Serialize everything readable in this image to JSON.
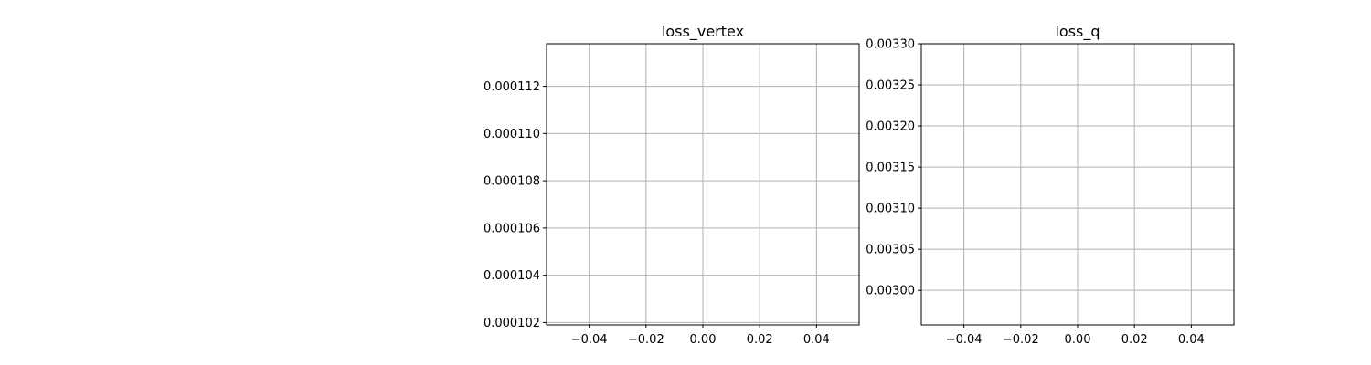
{
  "chart_data": [
    {
      "type": "line",
      "title": "loss_vertex",
      "xlabel": "",
      "ylabel": "",
      "xlim": [
        -0.055,
        0.055
      ],
      "ylim": [
        0.0001019,
        0.0001138
      ],
      "xticks": [
        -0.04,
        -0.02,
        0.0,
        0.02,
        0.04
      ],
      "xtick_labels": [
        "−0.04",
        "−0.02",
        "0.00",
        "0.02",
        "0.04"
      ],
      "yticks": [
        0.000102,
        0.000104,
        0.000106,
        0.000108,
        0.00011,
        0.000112
      ],
      "ytick_labels": [
        "0.000102",
        "0.000104",
        "0.000106",
        "0.000108",
        "0.000110",
        "0.000112"
      ],
      "grid": true,
      "series": [
        {
          "x": [],
          "y": []
        }
      ]
    },
    {
      "type": "line",
      "title": "loss_q",
      "xlabel": "",
      "ylabel": "",
      "xlim": [
        -0.055,
        0.055
      ],
      "ylim": [
        0.002958,
        0.0033
      ],
      "xticks": [
        -0.04,
        -0.02,
        0.0,
        0.02,
        0.04
      ],
      "xtick_labels": [
        "−0.04",
        "−0.02",
        "0.00",
        "0.02",
        "0.04"
      ],
      "yticks": [
        0.003,
        0.00305,
        0.0031,
        0.00315,
        0.0032,
        0.00325,
        0.0033
      ],
      "ytick_labels": [
        "0.00300",
        "0.00305",
        "0.00310",
        "0.00315",
        "0.00320",
        "0.00325",
        "0.00330"
      ],
      "grid": true,
      "series": [
        {
          "x": [],
          "y": []
        }
      ]
    }
  ]
}
